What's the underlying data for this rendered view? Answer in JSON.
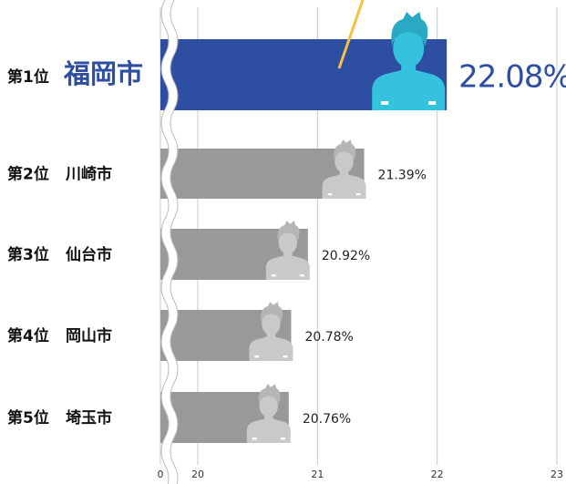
{
  "chart_data": {
    "type": "bar",
    "orientation": "horizontal",
    "ranks": [
      "第1位",
      "第2位",
      "第3位",
      "第4位",
      "第5位"
    ],
    "categories": [
      "福岡市",
      "川崎市",
      "仙台市",
      "岡山市",
      "埼玉市"
    ],
    "values": [
      22.08,
      21.39,
      20.92,
      20.78,
      20.76
    ],
    "value_labels": [
      "22.08%",
      "21.39%",
      "20.92%",
      "20.78%",
      "20.76%"
    ],
    "colors": [
      "#2e4ea1",
      "#999999",
      "#999999",
      "#999999",
      "#999999"
    ],
    "xlim": [
      0,
      23
    ],
    "axis_break": [
      0,
      20
    ],
    "xticks": [
      0,
      20,
      21,
      22,
      23
    ],
    "grid": true
  }
}
